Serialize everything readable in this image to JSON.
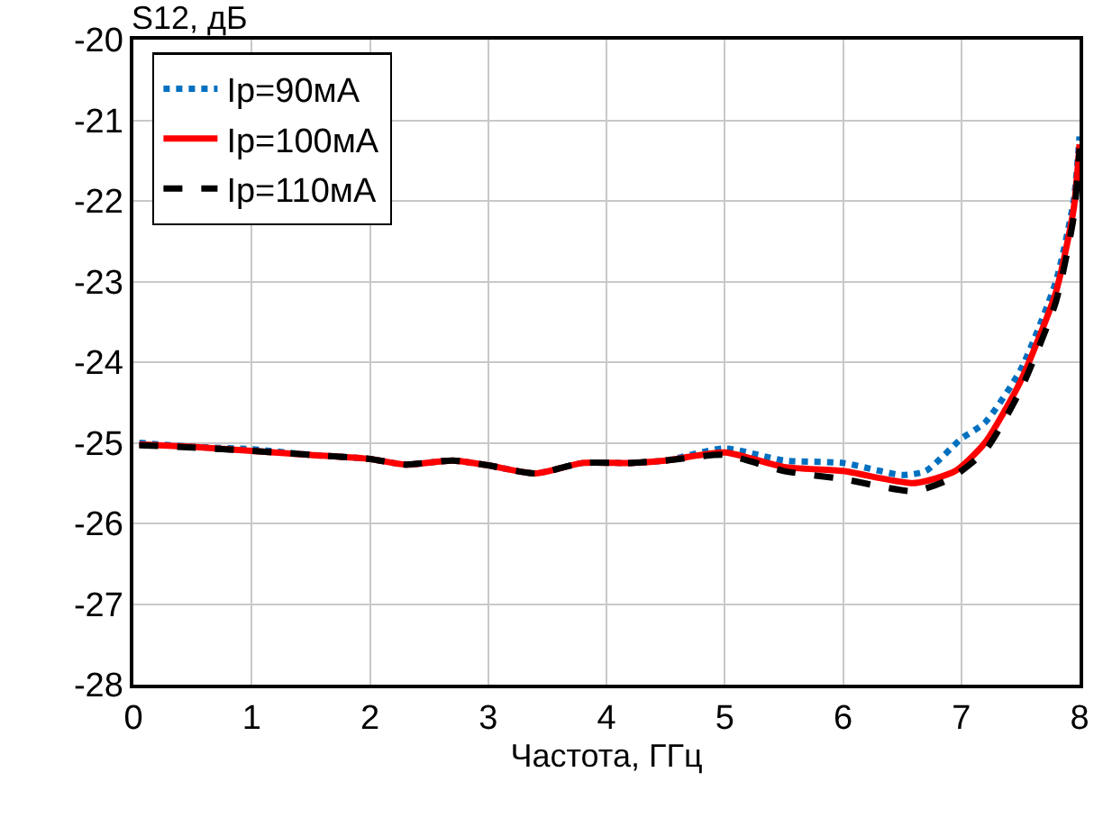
{
  "chart_data": {
    "type": "line",
    "ylabel": "S12, дБ",
    "xlabel": "Частота, ГГц",
    "xlim": [
      0,
      8
    ],
    "xticks": [
      0,
      1,
      2,
      3,
      4,
      5,
      6,
      7,
      8
    ],
    "ylim": [
      -28,
      -20
    ],
    "yticks": [
      -28,
      -27,
      -26,
      -25,
      -24,
      -23,
      -22,
      -21,
      -20
    ],
    "grid": true,
    "legend": "top left",
    "marker": "none",
    "series": [
      {
        "name": "Ip=90мА",
        "color": "#0070c0",
        "line_style": "dotted",
        "x": [
          0.05,
          0.5,
          1,
          1.5,
          2,
          2.3,
          2.7,
          3,
          3.4,
          3.8,
          4.2,
          4.5,
          5,
          5.5,
          6,
          6.5,
          6.7,
          7,
          7.2,
          7.5,
          7.8,
          7.95,
          8
        ],
        "values": [
          -25.0,
          -25.05,
          -25.08,
          -25.15,
          -25.2,
          -25.27,
          -25.22,
          -25.28,
          -25.38,
          -25.25,
          -25.25,
          -25.22,
          -25.07,
          -25.22,
          -25.25,
          -25.4,
          -25.35,
          -24.95,
          -24.75,
          -24.1,
          -23.0,
          -22.0,
          -21.2
        ]
      },
      {
        "name": "Ip=100мА",
        "color": "#ff0000",
        "line_style": "solid",
        "x": [
          0.05,
          0.5,
          1,
          1.5,
          2,
          2.3,
          2.7,
          3,
          3.4,
          3.8,
          4.2,
          4.5,
          5,
          5.5,
          6,
          6.6,
          6.95,
          7.2,
          7.5,
          7.8,
          7.95,
          8
        ],
        "values": [
          -25.02,
          -25.05,
          -25.1,
          -25.15,
          -25.2,
          -25.27,
          -25.22,
          -25.28,
          -25.38,
          -25.25,
          -25.25,
          -25.22,
          -25.12,
          -25.3,
          -25.35,
          -25.5,
          -25.35,
          -25.0,
          -24.24,
          -23.13,
          -22.1,
          -21.3
        ]
      },
      {
        "name": "Ip=110мА",
        "color": "#000000",
        "line_style": "dashed",
        "x": [
          0.05,
          0.5,
          1,
          1.5,
          2,
          2.3,
          2.7,
          3,
          3.4,
          3.8,
          4.2,
          4.5,
          5,
          5.5,
          6,
          6.6,
          6.9,
          7.2,
          7.5,
          7.8,
          7.95,
          8
        ],
        "values": [
          -25.03,
          -25.06,
          -25.1,
          -25.15,
          -25.2,
          -25.27,
          -25.22,
          -25.28,
          -25.38,
          -25.25,
          -25.25,
          -25.22,
          -25.15,
          -25.35,
          -25.45,
          -25.6,
          -25.45,
          -25.1,
          -24.35,
          -23.25,
          -22.2,
          -21.35
        ]
      }
    ]
  }
}
